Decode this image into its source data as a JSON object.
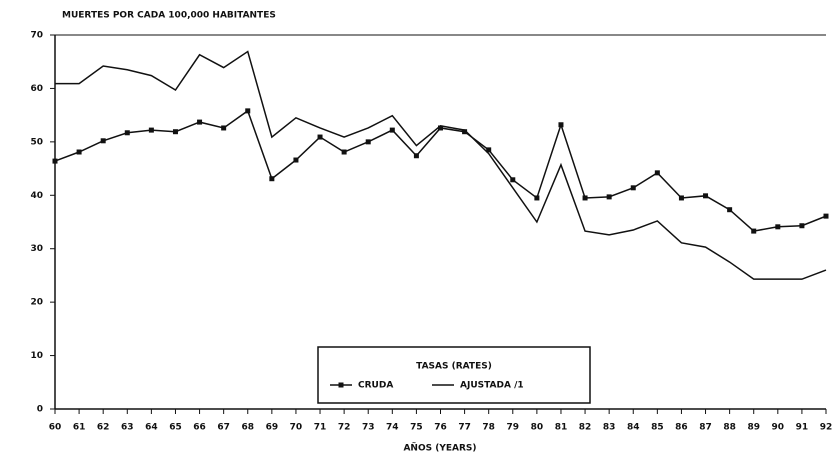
{
  "chart_data": {
    "type": "line",
    "title": "MUERTES POR CADA 100,000 HABITANTES",
    "x_label": "AÑOS (YEARS)",
    "legend_title": "TASAS (RATES)",
    "categories": [
      "60",
      "61",
      "62",
      "63",
      "64",
      "65",
      "66",
      "67",
      "68",
      "69",
      "70",
      "71",
      "72",
      "73",
      "74",
      "75",
      "76",
      "77",
      "78",
      "79",
      "80",
      "81",
      "82",
      "83",
      "84",
      "85",
      "86",
      "87",
      "88",
      "89",
      "90",
      "91",
      "92"
    ],
    "series": [
      {
        "name": "CRUDA",
        "color": "#111",
        "marker": true,
        "values": [
          46.4,
          48.1,
          50.2,
          51.7,
          52.2,
          51.9,
          53.7,
          52.6,
          55.8,
          43.1,
          46.6,
          50.9,
          48.1,
          50.0,
          52.2,
          47.4,
          52.6,
          51.9,
          48.5,
          42.9,
          39.5,
          53.2,
          39.5,
          39.7,
          41.4,
          44.2,
          39.5,
          39.9,
          37.3,
          33.3,
          34.1,
          34.3,
          36.1
        ]
      },
      {
        "name": "AJUSTADA /1",
        "color": "#111",
        "marker": false,
        "values": [
          60.9,
          60.9,
          64.2,
          63.5,
          62.4,
          59.7,
          66.3,
          63.9,
          66.9,
          50.9,
          54.5,
          52.6,
          50.9,
          52.6,
          54.9,
          49.3,
          53.0,
          52.2,
          47.8,
          41.4,
          35.0,
          45.7,
          33.3,
          32.6,
          33.5,
          35.2,
          31.1,
          30.3,
          27.5,
          24.3,
          24.3,
          24.3,
          26.0
        ]
      }
    ],
    "ylim": [
      0,
      70
    ],
    "yticks": [
      0,
      10,
      20,
      30,
      40,
      50,
      60,
      70
    ]
  }
}
